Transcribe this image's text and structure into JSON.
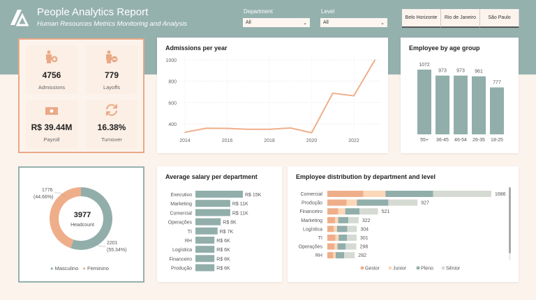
{
  "header": {
    "title": "People Analytics Report",
    "subtitle": "Human Resources Metrics Monitoring and Analysis"
  },
  "filters": {
    "department": {
      "label": "Department",
      "value": "All"
    },
    "level": {
      "label": "Level",
      "value": "All"
    }
  },
  "cities": [
    "Belo Horizonte",
    "Rio de Janeiro",
    "São Paulo"
  ],
  "colors": {
    "orange": "#efae8a",
    "peach": "#fcd7b8",
    "teal": "#91aeab",
    "gray": "#d5dbd3",
    "band": "#95b1ae"
  },
  "kpis": [
    {
      "icon": "person-add-icon",
      "value": "4756",
      "label": "Admissions"
    },
    {
      "icon": "person-remove-icon",
      "value": "779",
      "label": "Layoffs"
    },
    {
      "icon": "money-icon",
      "value": "R$ 39.44M",
      "label": "Payroll"
    },
    {
      "icon": "refresh-icon",
      "value": "16.38%",
      "label": "Turnover"
    }
  ],
  "headcount": {
    "value": "3977",
    "label": "Headcount",
    "legend": [
      "Masculino",
      "Feminino"
    ]
  },
  "chart_data": [
    {
      "type": "line",
      "title": "Admissions per year",
      "x": [
        2014,
        2015,
        2016,
        2017,
        2018,
        2019,
        2020,
        2021,
        2022,
        2023
      ],
      "values": [
        322,
        360,
        358,
        350,
        350,
        362,
        318,
        688,
        664,
        1000
      ],
      "yticks": [
        400,
        600,
        800,
        1000
      ],
      "xticks": [
        2014,
        2016,
        2018,
        2020,
        2022
      ],
      "ylim": [
        300,
        1000
      ],
      "grid": true
    },
    {
      "type": "bar",
      "title": "Employee by age group",
      "categories": [
        "55+",
        "36-45",
        "46-54",
        "26-35",
        "18-25"
      ],
      "values": [
        1072,
        973,
        973,
        961,
        777
      ],
      "data_labels": [
        "1072",
        "973",
        "973",
        "961",
        "777"
      ]
    },
    {
      "type": "pie",
      "title": "",
      "donut": true,
      "categories": [
        "Masculino",
        "Feminino"
      ],
      "values": [
        2201,
        1776
      ],
      "labels": [
        "2201\n(55.34%)",
        "1776\n(44.66%)"
      ],
      "label_lines": [
        [
          "2201",
          "(55.34%)"
        ],
        [
          "1776",
          "(44.66%)"
        ]
      ]
    },
    {
      "type": "bar",
      "orientation": "horizontal",
      "title": "Average salary per department",
      "categories": [
        "Executivo",
        "Marketing",
        "Comercial",
        "Operações",
        "TI",
        "RH",
        "Logística",
        "Financeiro",
        "Produção"
      ],
      "values": [
        15,
        11,
        11,
        8,
        7,
        6,
        6,
        6,
        6
      ],
      "unit": "R$ K",
      "data_labels": [
        "R$ 15K",
        "R$ 11K",
        "R$ 11K",
        "R$ 8K",
        "R$ 7K",
        "R$ 6K",
        "R$ 6K",
        "R$ 6K",
        "R$ 6K"
      ]
    },
    {
      "type": "bar",
      "orientation": "horizontal",
      "stacked": true,
      "title": "Employee distribution by department and level",
      "categories": [
        "Comercial",
        "Produção",
        "Financeiro",
        "Marketing",
        "Logística",
        "TI",
        "Operações",
        "RH"
      ],
      "series": [
        {
          "name": "Gestor",
          "values": [
            371,
            199,
            112,
            79,
            67,
            84,
            72,
            62
          ]
        },
        {
          "name": "Junior",
          "values": [
            227,
            105,
            72,
            33,
            33,
            33,
            33,
            24
          ]
        },
        {
          "name": "Pleno",
          "values": [
            490,
            323,
            146,
            103,
            105,
            84,
            84,
            88
          ]
        },
        {
          "name": "Sênior",
          "values": [
            598,
            300,
            191,
            107,
            99,
            100,
            109,
            108
          ]
        }
      ],
      "totals": [
        "1686",
        "927",
        "521",
        "322",
        "304",
        "301",
        "298",
        "282"
      ],
      "legend": "bottom"
    }
  ]
}
